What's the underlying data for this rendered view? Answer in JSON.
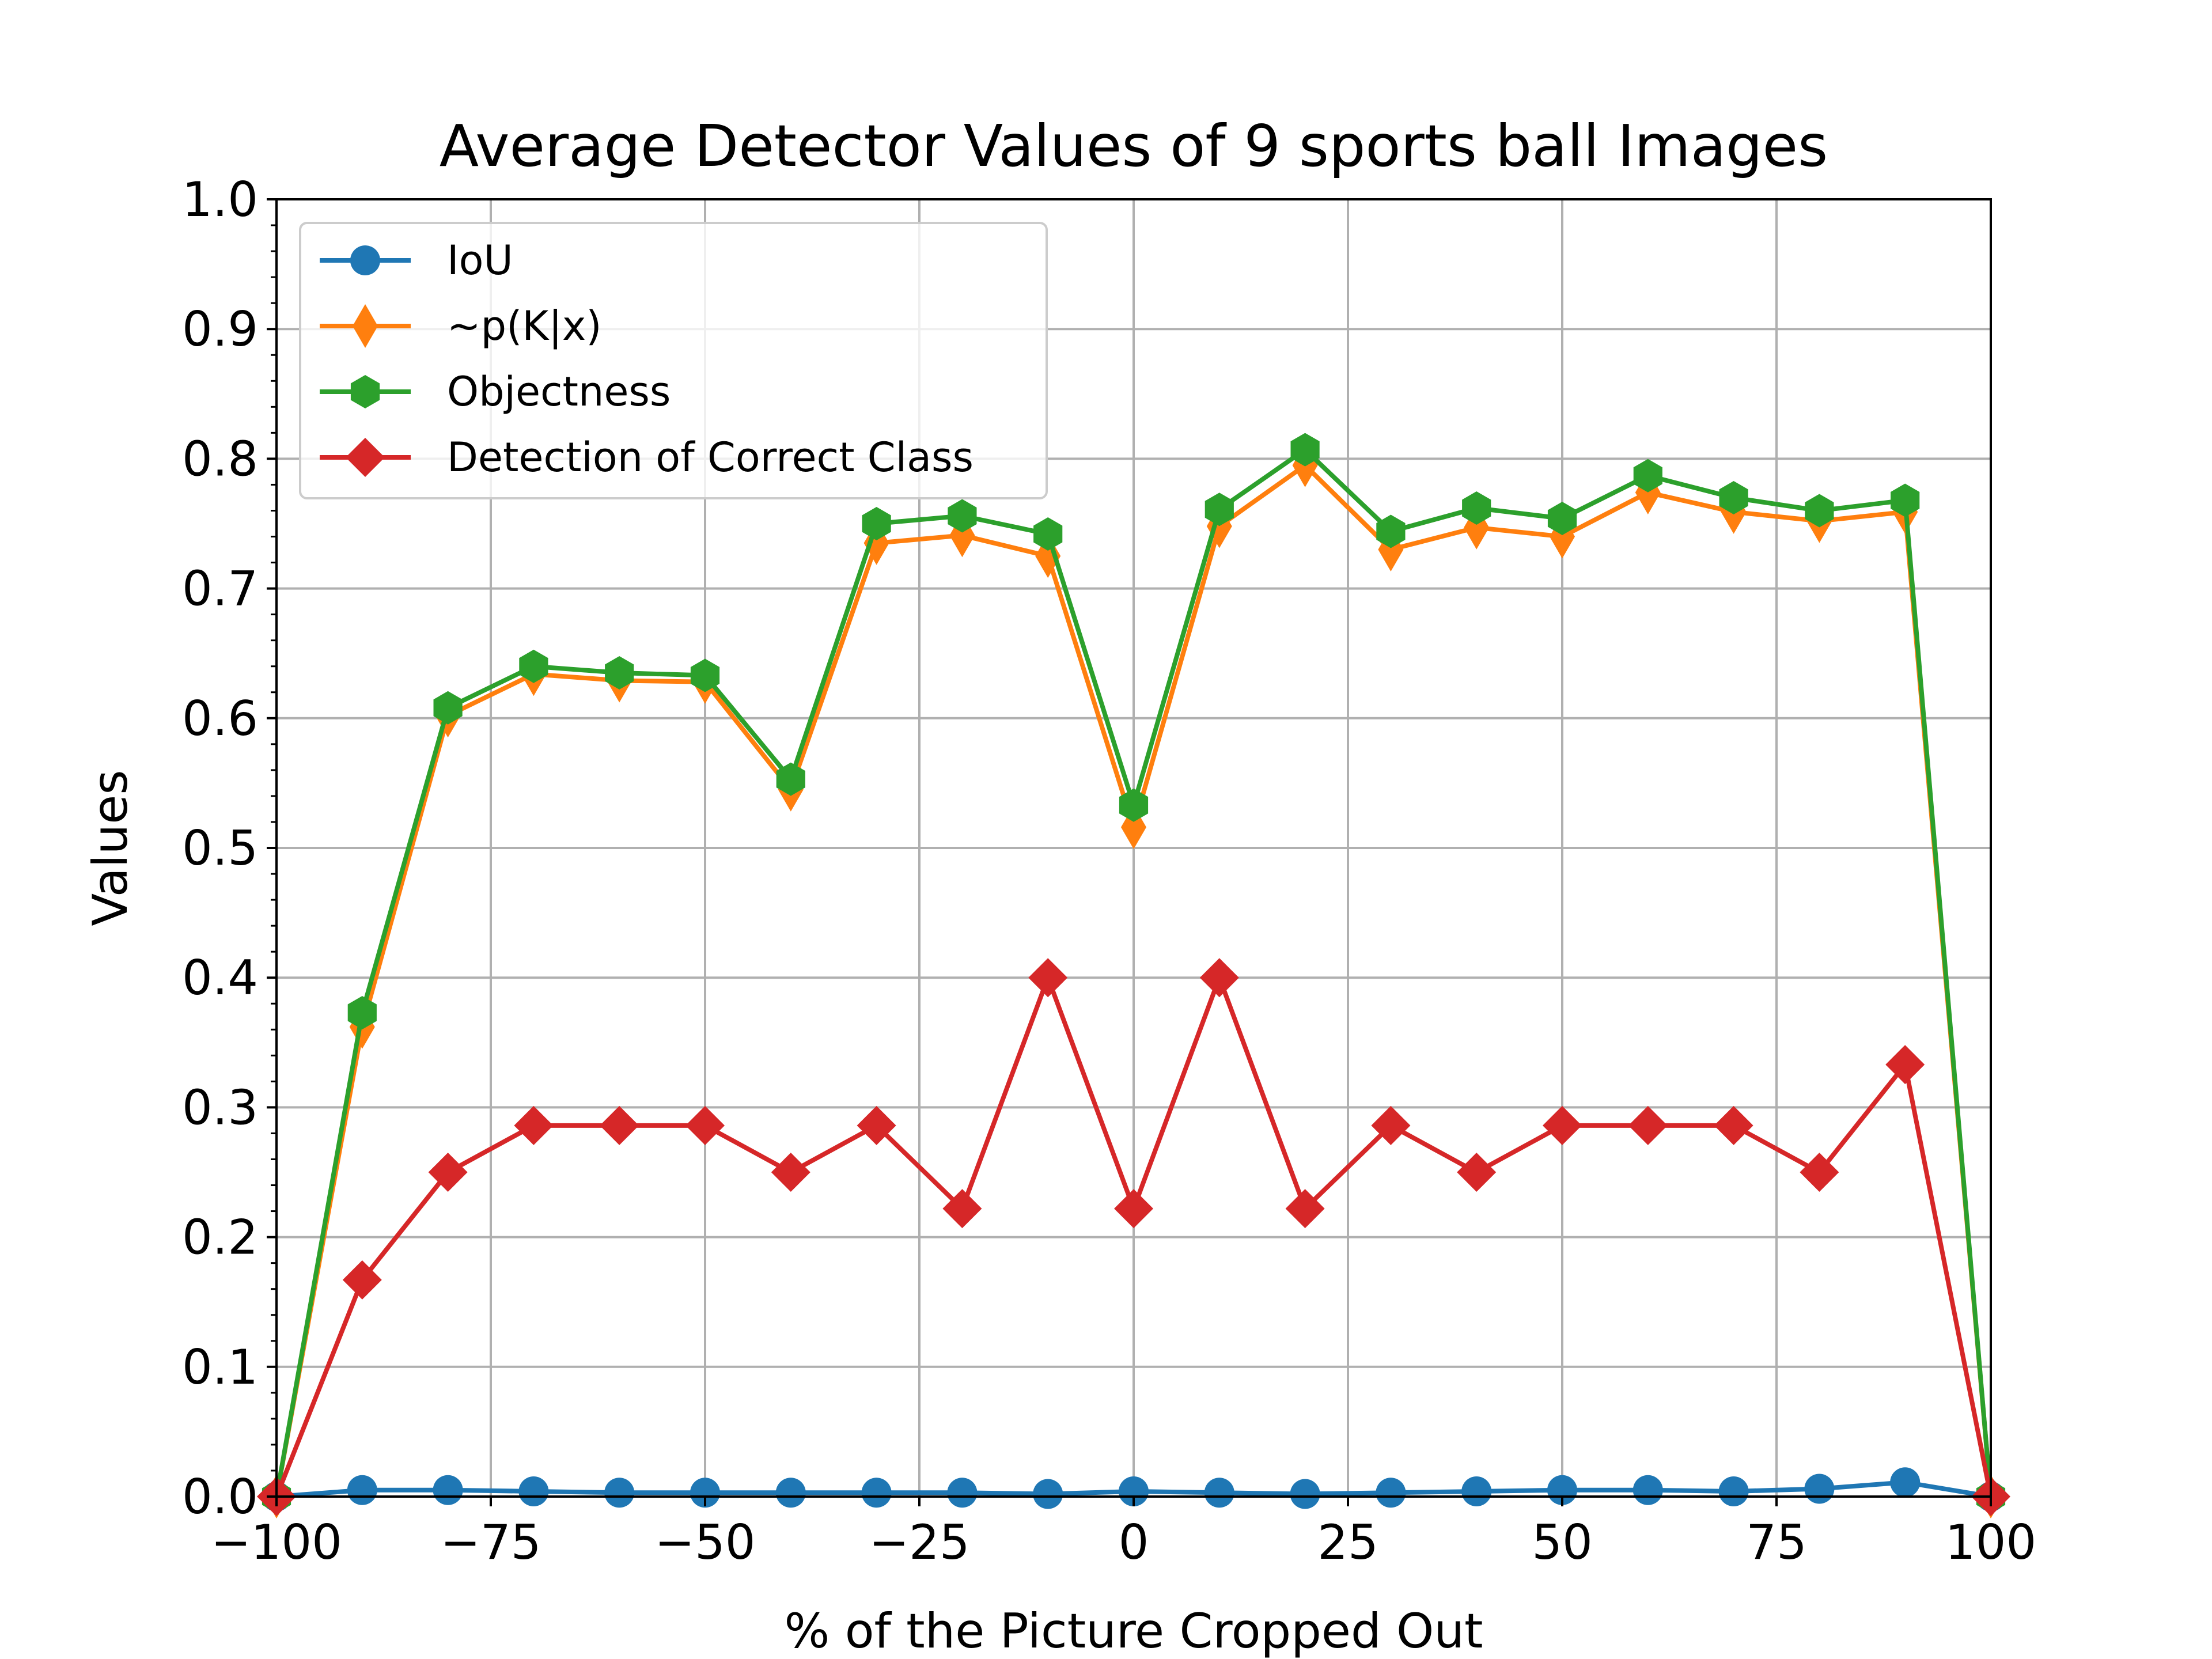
{
  "chart_data": {
    "type": "line",
    "title": "Average Detector Values of 9 sports ball Images",
    "xlabel": "% of the Picture Cropped Out",
    "ylabel": "Values",
    "xlim": [
      -100,
      100
    ],
    "ylim": [
      0,
      1
    ],
    "xticks": [
      -100,
      -75,
      -50,
      -25,
      0,
      25,
      50,
      75,
      100
    ],
    "xtick_labels": [
      "−100",
      "−75",
      "−50",
      "−25",
      "0",
      "25",
      "50",
      "75",
      "100"
    ],
    "yticks": [
      0,
      0.1,
      0.2,
      0.3,
      0.4,
      0.5,
      0.6,
      0.7,
      0.8,
      0.9,
      1.0
    ],
    "ytick_labels": [
      "0.0",
      "0.1",
      "0.2",
      "0.3",
      "0.4",
      "0.5",
      "0.6",
      "0.7",
      "0.8",
      "0.9",
      "1.0"
    ],
    "grid": true,
    "legend_position": "upper-left",
    "x": [
      -100,
      -90,
      -80,
      -70,
      -60,
      -50,
      -40,
      -30,
      -20,
      -10,
      0,
      10,
      20,
      30,
      40,
      50,
      60,
      70,
      80,
      90,
      100
    ],
    "series": [
      {
        "name": "IoU",
        "color": "#1f77b4",
        "marker": "circle",
        "values": [
          0.0,
          0.005,
          0.005,
          0.004,
          0.003,
          0.003,
          0.003,
          0.003,
          0.003,
          0.002,
          0.004,
          0.003,
          0.002,
          0.003,
          0.004,
          0.005,
          0.005,
          0.004,
          0.006,
          0.011,
          0.0
        ]
      },
      {
        "name": "~p(K|x)",
        "color": "#ff7f0e",
        "marker": "thin-diamond",
        "values": [
          0.0,
          0.362,
          0.602,
          0.634,
          0.629,
          0.628,
          0.545,
          0.735,
          0.741,
          0.725,
          0.516,
          0.748,
          0.795,
          0.73,
          0.747,
          0.74,
          0.774,
          0.759,
          0.752,
          0.759,
          0.0
        ]
      },
      {
        "name": "Objectness",
        "color": "#2ca02c",
        "marker": "hexagon",
        "values": [
          0.0,
          0.373,
          0.608,
          0.64,
          0.635,
          0.633,
          0.553,
          0.75,
          0.756,
          0.742,
          0.533,
          0.761,
          0.807,
          0.744,
          0.762,
          0.754,
          0.787,
          0.77,
          0.76,
          0.768,
          0.0
        ]
      },
      {
        "name": "Detection of Correct Class",
        "color": "#d62728",
        "marker": "diamond",
        "values": [
          0.0,
          0.167,
          0.25,
          0.286,
          0.286,
          0.286,
          0.25,
          0.286,
          0.222,
          0.4,
          0.222,
          0.4,
          0.222,
          0.286,
          0.25,
          0.286,
          0.286,
          0.286,
          0.25,
          0.333,
          0.0
        ]
      }
    ]
  }
}
